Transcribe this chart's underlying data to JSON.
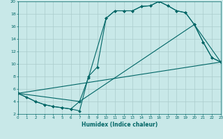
{
  "xlabel": "Humidex (Indice chaleur)",
  "bg_color": "#c8e8e8",
  "line_color": "#006666",
  "grid_color": "#aacccc",
  "xlim": [
    0,
    23
  ],
  "ylim": [
    2,
    20
  ],
  "xticks": [
    0,
    1,
    2,
    3,
    4,
    5,
    6,
    7,
    8,
    9,
    10,
    11,
    12,
    13,
    14,
    15,
    16,
    17,
    18,
    19,
    20,
    21,
    22,
    23
  ],
  "yticks": [
    2,
    4,
    6,
    8,
    10,
    12,
    14,
    16,
    18,
    20
  ],
  "curves": [
    {
      "x": [
        0,
        1,
        2,
        3,
        4,
        5,
        6,
        7,
        8,
        9,
        10,
        11,
        12,
        13,
        14,
        15,
        16,
        17,
        18,
        19,
        20,
        21,
        22,
        23
      ],
      "y": [
        5.3,
        4.7,
        4.0,
        3.5,
        3.2,
        3.0,
        2.8,
        2.5,
        8.0,
        9.5,
        17.3,
        18.5,
        18.5,
        18.5,
        19.2,
        19.3,
        20.0,
        19.3,
        18.5,
        18.2,
        16.3,
        13.5,
        11.0,
        10.3
      ]
    },
    {
      "x": [
        0,
        2,
        3,
        4,
        5,
        6,
        7,
        8,
        10,
        11,
        12,
        13,
        14,
        15,
        16,
        17,
        18,
        19,
        20,
        21,
        22,
        23
      ],
      "y": [
        5.3,
        4.0,
        3.5,
        3.2,
        3.0,
        2.8,
        4.0,
        7.8,
        17.3,
        18.5,
        18.5,
        18.5,
        19.2,
        19.3,
        20.0,
        19.3,
        18.5,
        18.2,
        16.3,
        13.5,
        11.0,
        10.3
      ]
    },
    {
      "x": [
        0,
        23
      ],
      "y": [
        5.3,
        10.3
      ]
    },
    {
      "x": [
        0,
        7,
        20,
        23
      ],
      "y": [
        5.3,
        4.0,
        16.3,
        10.3
      ]
    }
  ]
}
